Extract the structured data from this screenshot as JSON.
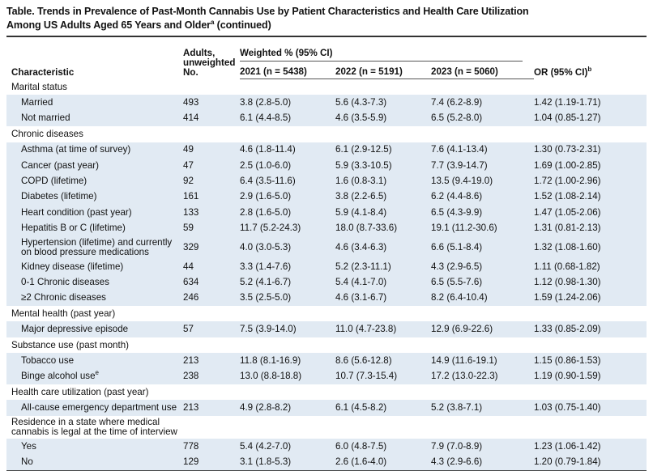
{
  "title_line1": "Table. Trends in Prevalence of Past-Month Cannabis Use by Patient Characteristics and Health Care Utilization",
  "title_line2": "Among US Adults Aged 65 Years and Older",
  "title_sup": "a",
  "title_suffix": " (continued)",
  "headers": {
    "characteristic": "Characteristic",
    "adults_line1": "Adults,",
    "adults_line2": "unweighted",
    "adults_line3": "No.",
    "weighted": "Weighted % (95% CI)",
    "y2021": "2021 (n = 5438)",
    "y2022": "2022 (n = 5191)",
    "y2023": "2023 (n = 5060)",
    "or": "OR (95% CI)",
    "or_sup": "b"
  },
  "sections": [
    {
      "label": "Marital status",
      "rows": [
        {
          "label": "Married",
          "n": "493",
          "v2021": "3.8 (2.8-5.0)",
          "v2022": "5.6 (4.3-7.3)",
          "v2023": "7.4 (6.2-8.9)",
          "or": "1.42 (1.19-1.71)"
        },
        {
          "label": "Not married",
          "n": "414",
          "v2021": "6.1 (4.4-8.5)",
          "v2022": "4.6 (3.5-5.9)",
          "v2023": "6.5 (5.2-8.0)",
          "or": "1.04 (0.85-1.27)"
        }
      ]
    },
    {
      "label": "Chronic diseases",
      "rows": [
        {
          "label": "Asthma (at time of survey)",
          "n": "49",
          "v2021": "4.6 (1.8-11.4)",
          "v2022": "6.1 (2.9-12.5)",
          "v2023": "7.6 (4.1-13.4)",
          "or": "1.30 (0.73-2.31)"
        },
        {
          "label": "Cancer (past year)",
          "n": "47",
          "v2021": "2.5 (1.0-6.0)",
          "v2022": "5.9 (3.3-10.5)",
          "v2023": "7.7 (3.9-14.7)",
          "or": "1.69 (1.00-2.85)"
        },
        {
          "label": "COPD (lifetime)",
          "n": "92",
          "v2021": "6.4 (3.5-11.6)",
          "v2022": "1.6 (0.8-3.1)",
          "v2023": "13.5 (9.4-19.0)",
          "or": "1.72 (1.00-2.96)"
        },
        {
          "label": "Diabetes (lifetime)",
          "n": "161",
          "v2021": "2.9 (1.6-5.0)",
          "v2022": "3.8 (2.2-6.5)",
          "v2023": "6.2 (4.4-8.6)",
          "or": "1.52 (1.08-2.14)"
        },
        {
          "label": "Heart condition (past year)",
          "n": "133",
          "v2021": "2.8 (1.6-5.0)",
          "v2022": "5.9 (4.1-8.4)",
          "v2023": "6.5 (4.3-9.9)",
          "or": "1.47 (1.05-2.06)"
        },
        {
          "label": "Hepatitis B or C (lifetime)",
          "n": "59",
          "v2021": "11.7 (5.2-24.3)",
          "v2022": "18.0 (8.7-33.6)",
          "v2023": "19.1 (11.2-30.6)",
          "or": "1.31 (0.81-2.13)"
        },
        {
          "label": "Hypertension (lifetime) and currently",
          "label2": "on blood pressure medications",
          "n": "329",
          "v2021": "4.0 (3.0-5.3)",
          "v2022": "4.6 (3.4-6.3)",
          "v2023": "6.6 (5.1-8.4)",
          "or": "1.32 (1.08-1.60)"
        },
        {
          "label": "Kidney disease (lifetime)",
          "n": "44",
          "v2021": "3.3 (1.4-7.6)",
          "v2022": "5.2 (2.3-11.1)",
          "v2023": "4.3 (2.9-6.5)",
          "or": "1.11 (0.68-1.82)"
        },
        {
          "label": "0-1 Chronic diseases",
          "n": "634",
          "v2021": "5.2 (4.1-6.7)",
          "v2022": "5.4 (4.1-7.0)",
          "v2023": "6.5 (5.5-7.6)",
          "or": "1.12 (0.98-1.30)"
        },
        {
          "label": "≥2 Chronic diseases",
          "n": "246",
          "v2021": "3.5 (2.5-5.0)",
          "v2022": "4.6 (3.1-6.7)",
          "v2023": "8.2 (6.4-10.4)",
          "or": "1.59 (1.24-2.06)"
        }
      ]
    },
    {
      "label": "Mental health (past year)",
      "rows": [
        {
          "label": "Major depressive episode",
          "n": "57",
          "v2021": "7.5 (3.9-14.0)",
          "v2022": "11.0 (4.7-23.8)",
          "v2023": "12.9 (6.9-22.6)",
          "or": "1.33 (0.85-2.09)"
        }
      ]
    },
    {
      "label": "Substance use (past month)",
      "rows": [
        {
          "label": "Tobacco use",
          "n": "213",
          "v2021": "11.8 (8.1-16.9)",
          "v2022": "8.6 (5.6-12.8)",
          "v2023": "14.9 (11.6-19.1)",
          "or": "1.15 (0.86-1.53)"
        },
        {
          "label": "Binge alcohol use",
          "sup": "e",
          "n": "238",
          "v2021": "13.0 (8.8-18.8)",
          "v2022": "10.7 (7.3-15.4)",
          "v2023": "17.2 (13.0-22.3)",
          "or": "1.19 (0.90-1.59)"
        }
      ]
    },
    {
      "label": "Health care utilization (past year)",
      "rows": [
        {
          "label": "All-cause emergency department use",
          "n": "213",
          "v2021": "4.9 (2.8-8.2)",
          "v2022": "6.1 (4.5-8.2)",
          "v2023": "5.2 (3.8-7.1)",
          "or": "1.03 (0.75-1.40)"
        }
      ]
    },
    {
      "label": "Residence in a state where medical",
      "label2": "cannabis is legal at the time of interview",
      "rows": [
        {
          "label": "Yes",
          "n": "778",
          "v2021": "5.4 (4.2-7.0)",
          "v2022": "6.0 (4.8-7.5)",
          "v2023": "7.9 (7.0-8.9)",
          "or": "1.23 (1.06-1.42)"
        },
        {
          "label": "No",
          "n": "129",
          "v2021": "3.1 (1.8-5.3)",
          "v2022": "2.6 (1.6-4.0)",
          "v2023": "4.3 (2.9-6.6)",
          "or": "1.20 (0.79-1.84)"
        }
      ]
    }
  ]
}
